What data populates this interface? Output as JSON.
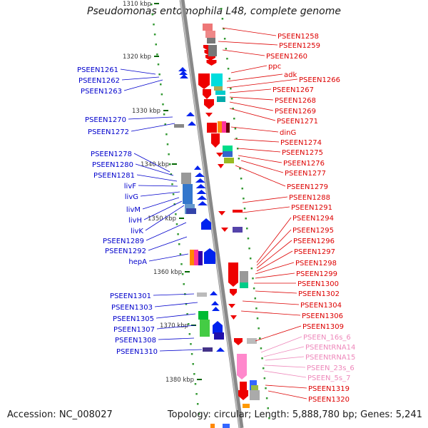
{
  "title": "Pseudomonas entomophila L48, complete genome",
  "footer": {
    "accession": "Accession: NC_008027",
    "summary": "Topology: circular; Length: 5,888,780 bp; Genes: 5,241"
  },
  "colors": {
    "left_label": "#0000cc",
    "right_label": "#dd0000",
    "rna_label": "#ee88bb",
    "axis": "#888888",
    "scale_tick": "#006600"
  },
  "scale_labels": [
    "1310 kbp",
    "1320 kbp",
    "1330 kbp",
    "1340 kbp",
    "1350 kbp",
    "1360 kbp",
    "1370 kbp",
    "1380 kbp"
  ],
  "left_labels": [
    "PSEEN1261",
    "PSEEN1262",
    "PSEEN1263",
    "PSEEN1270",
    "PSEEN1272",
    "PSEEN1278",
    "PSEEN1280",
    "PSEEN1281",
    "livF",
    "livG",
    "livM",
    "livH",
    "livK",
    "PSEEN1289",
    "PSEEN1292",
    "hepA",
    "PSEEN1301",
    "PSEEN1303",
    "PSEEN1305",
    "PSEEN1307",
    "PSEEN1308",
    "PSEEN1310"
  ],
  "right_labels": [
    "PSEEN1258",
    "PSEEN1259",
    "PSEEN1260",
    "ppc",
    "adk",
    "PSEEN1266",
    "PSEEN1267",
    "PSEEN1268",
    "PSEEN1269",
    "PSEEN1271",
    "dinG",
    "PSEEN1274",
    "PSEEN1275",
    "PSEEN1276",
    "PSEEN1277",
    "PSEEN1279",
    "PSEEN1288",
    "PSEEN1291",
    "PSEEN1294",
    "PSEEN1295",
    "PSEEN1296",
    "PSEEN1297",
    "PSEEN1298",
    "PSEEN1299",
    "PSEEN1300",
    "PSEEN1302",
    "PSEEN1304",
    "PSEEN1306",
    "PSEEN1309",
    "PSEEN_16s_6",
    "PSEENtRNA14",
    "PSEENtRNA15",
    "PSEEN_23s_6",
    "PSEEN_5s_7",
    "PSEEN1319",
    "PSEEN1320"
  ],
  "rna_labels": [
    "PSEEN_16s_6",
    "PSEENtRNA14",
    "PSEENtRNA15",
    "PSEEN_23s_6",
    "PSEEN_5s_7"
  ]
}
